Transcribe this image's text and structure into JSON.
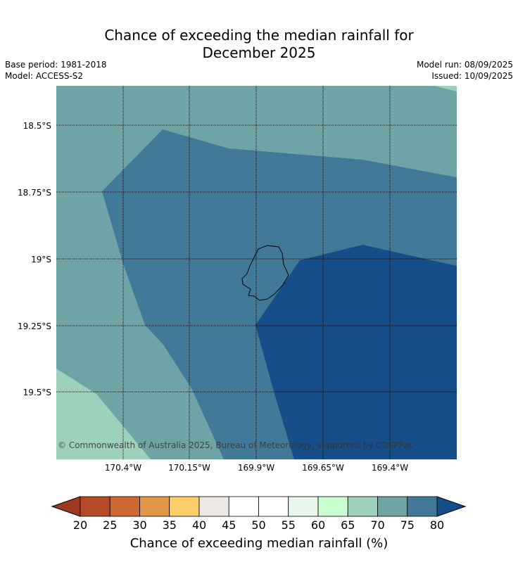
{
  "header": {
    "title_line1": "Chance of exceeding the median rainfall for",
    "title_line2": "December 2025",
    "base_period": "Base period: 1981-2018",
    "model": "Model: ACCESS-S2",
    "model_run": "Model run: 08/09/2025",
    "issued": "Issued: 10/09/2025"
  },
  "map": {
    "copyright": "© Commonwealth of Australia 2025, Bureau of Meteorology, supported by COSPPac",
    "lat_labels": [
      "18.5°S",
      "18.75°S",
      "19°S",
      "19.25°S",
      "19.5°S"
    ],
    "lon_labels": [
      "170.4°W",
      "170.15°W",
      "169.9°W",
      "169.65°W",
      "169.4°W"
    ],
    "region_colors": {
      "65-70": "#9dd1bb",
      "70-75": "#6ea4a6",
      "75-80": "#417a99",
      "80+": "#154e88"
    }
  },
  "colorbar": {
    "label": "Chance of exceeding median rainfall (%)",
    "ticks": [
      "20",
      "25",
      "30",
      "35",
      "40",
      "45",
      "50",
      "55",
      "60",
      "65",
      "70",
      "75",
      "80"
    ],
    "under_color": "#9e3a1f",
    "over_color": "#154e88",
    "colors": [
      "#b44a26",
      "#cd6733",
      "#e09547",
      "#fdcd69",
      "#ece8e5",
      "#ffffff",
      "#ffffff",
      "#eaf6ea",
      "#cafecf",
      "#9dd1bb",
      "#6ea4a6",
      "#417a99"
    ]
  }
}
